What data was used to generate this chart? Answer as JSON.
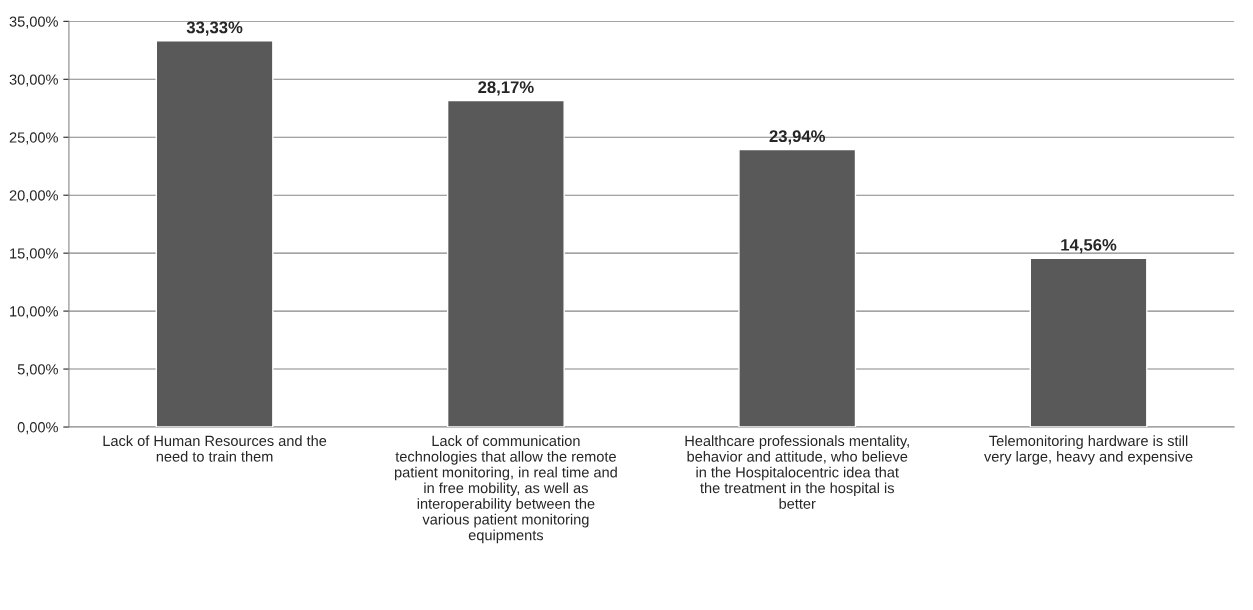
{
  "chart_data": {
    "type": "bar",
    "categories": [
      "Lack of Human Resources and the\nneed to train them",
      "Lack of communication\ntechnologies that allow the remote\npatient monitoring, in real time and\nin free mobility, as well as\ninteroperability between the\nvarious patient monitoring\nequipments",
      "Healthcare professionals mentality,\nbehavior and attitude, who believe\nin the Hospitalocentric idea that\nthe treatment in the hospital is\nbetter",
      "Telemonitoring hardware is still\nvery large, heavy and expensive"
    ],
    "values": [
      33.33,
      28.17,
      23.94,
      14.56
    ],
    "value_labels": [
      "33,33%",
      "28,17%",
      "23,94%",
      "14,56%"
    ],
    "color": "#595959",
    "ylim": [
      0,
      35
    ],
    "yticks": [
      {
        "value": 0,
        "label": "0,00%"
      },
      {
        "value": 5,
        "label": "5,00%"
      },
      {
        "value": 10,
        "label": "10,00%"
      },
      {
        "value": 15,
        "label": "15,00%"
      },
      {
        "value": 20,
        "label": "20,00%"
      },
      {
        "value": 25,
        "label": "25,00%"
      },
      {
        "value": 30,
        "label": "30,00%"
      },
      {
        "value": 35,
        "label": "35,00%"
      }
    ],
    "grid": "y"
  }
}
